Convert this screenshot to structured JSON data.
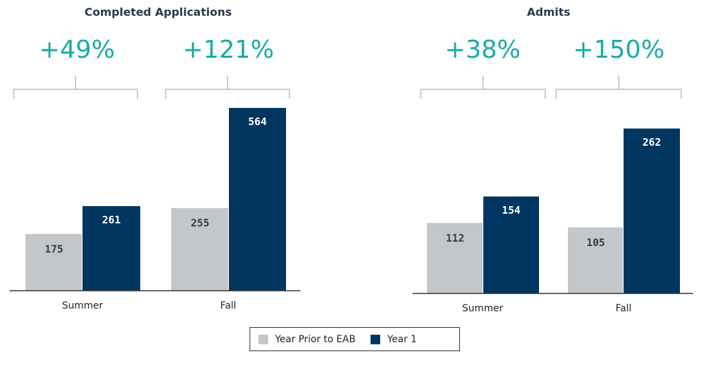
{
  "colors": {
    "prior": "#c4c7ca",
    "year1": "#003660",
    "accent": "#17aca5",
    "axis": "#333333",
    "bracket": "#bcbcbc",
    "title": "#2b3a4a"
  },
  "legend": {
    "items": [
      {
        "label": "Year Prior to EAB",
        "color": "#c4c7ca"
      },
      {
        "label": "Year 1",
        "color": "#003660"
      }
    ]
  },
  "chart_data": [
    {
      "type": "bar",
      "title": "Completed Applications",
      "categories": [
        "Summer",
        "Fall"
      ],
      "series": [
        {
          "name": "Year Prior to EAB",
          "values": [
            175,
            255
          ]
        },
        {
          "name": "Year 1",
          "values": [
            261,
            564
          ]
        }
      ],
      "changes": [
        "+49%",
        "+121%"
      ],
      "ylim": [
        0,
        564
      ],
      "grid": false
    },
    {
      "type": "bar",
      "title": "Admits",
      "categories": [
        "Summer",
        "Fall"
      ],
      "series": [
        {
          "name": "Year Prior to EAB",
          "values": [
            112,
            105
          ]
        },
        {
          "name": "Year 1",
          "values": [
            154,
            262
          ]
        }
      ],
      "changes": [
        "+38%",
        "+150%"
      ],
      "ylim": [
        0,
        262
      ],
      "grid": false
    }
  ]
}
